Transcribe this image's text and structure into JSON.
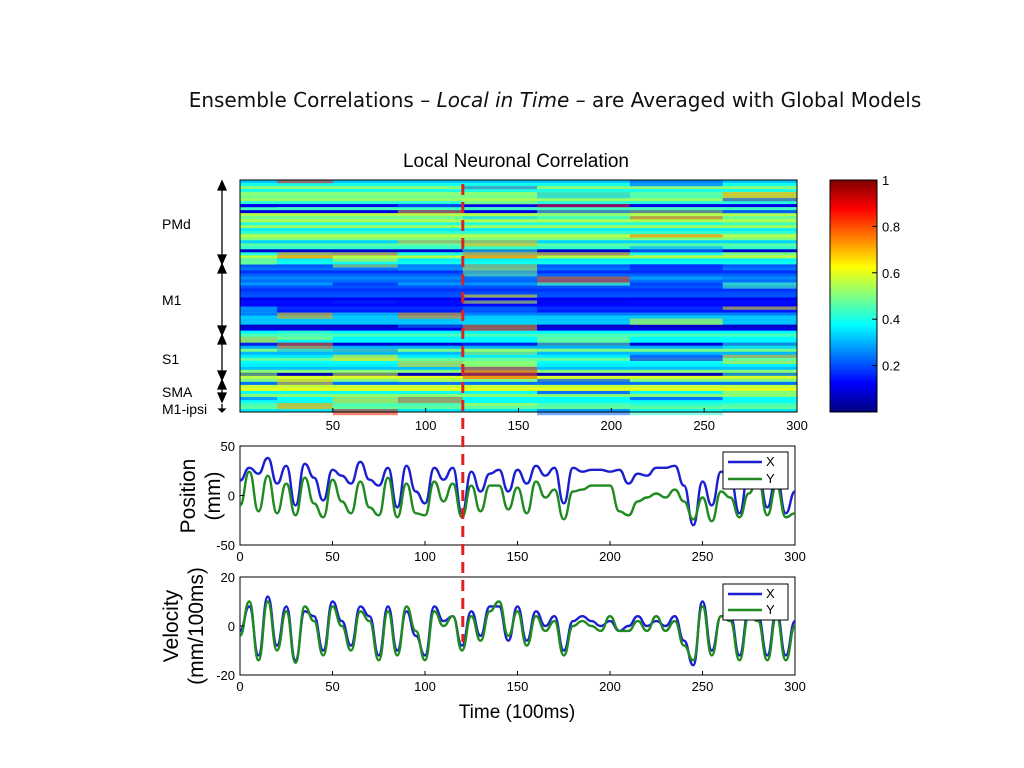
{
  "slide": {
    "title_pre": "Ensemble Correlations – ",
    "title_em": "Local in Time",
    "title_post": " – are Averaged with Global Models"
  },
  "colors": {
    "x_series": "#1a1fd0",
    "y_series": "#1f8a1f",
    "marker": "#e02020"
  },
  "chart_data": [
    {
      "type": "heatmap",
      "title": "Local Neuronal Correlation",
      "xlim": [
        0,
        300
      ],
      "xticks": [
        50,
        100,
        150,
        200,
        250,
        300
      ],
      "region_labels": [
        "PMd",
        "M1",
        "S1",
        "SMA",
        "M1-ipsi"
      ],
      "colorbar": {
        "range": [
          0,
          1
        ],
        "ticks": [
          1,
          0.8,
          0.6,
          0.4,
          0.2
        ],
        "colormap": "jet"
      },
      "marker_x": 120
    },
    {
      "type": "line",
      "ylabel": [
        "Position",
        "(mm)"
      ],
      "xlim": [
        0,
        300
      ],
      "ylim": [
        -50,
        50
      ],
      "xticks": [
        0,
        50,
        100,
        150,
        200,
        250,
        300
      ],
      "yticks": [
        50,
        0,
        -50
      ],
      "legend_position": "top-right",
      "marker_x": 120,
      "x": [
        0,
        5,
        10,
        15,
        20,
        25,
        30,
        35,
        40,
        45,
        50,
        55,
        60,
        65,
        70,
        75,
        80,
        85,
        90,
        95,
        100,
        105,
        110,
        115,
        120,
        125,
        130,
        135,
        140,
        145,
        150,
        155,
        160,
        165,
        170,
        175,
        180,
        185,
        190,
        195,
        200,
        205,
        210,
        215,
        220,
        225,
        230,
        235,
        240,
        245,
        250,
        255,
        260,
        265,
        270,
        275,
        280,
        285,
        290,
        295,
        300
      ],
      "series": [
        {
          "name": "X",
          "values": [
            15,
            28,
            22,
            38,
            12,
            30,
            -10,
            32,
            18,
            -5,
            26,
            20,
            12,
            34,
            16,
            10,
            28,
            -12,
            30,
            4,
            -8,
            28,
            16,
            28,
            -18,
            24,
            4,
            22,
            26,
            4,
            26,
            12,
            30,
            20,
            28,
            -8,
            28,
            24,
            26,
            26,
            24,
            26,
            12,
            22,
            20,
            28,
            28,
            30,
            10,
            -30,
            14,
            -10,
            24,
            18,
            -18,
            24,
            26,
            -12,
            20,
            -18,
            4
          ]
        },
        {
          "name": "Y",
          "values": [
            -10,
            24,
            -16,
            20,
            -18,
            12,
            -20,
            18,
            -8,
            -22,
            16,
            -6,
            -18,
            14,
            -12,
            -20,
            18,
            -22,
            12,
            -18,
            -20,
            14,
            -6,
            12,
            -22,
            10,
            -16,
            10,
            10,
            -14,
            8,
            -18,
            14,
            -2,
            6,
            -24,
            4,
            6,
            10,
            10,
            10,
            -16,
            -20,
            -6,
            -2,
            2,
            -2,
            6,
            -6,
            -24,
            -2,
            -26,
            4,
            -2,
            -22,
            2,
            18,
            -20,
            10,
            -22,
            -18
          ]
        }
      ]
    },
    {
      "type": "line",
      "ylabel": [
        "Velocity",
        "(mm/100ms)"
      ],
      "xlabel": "Time (100ms)",
      "xlim": [
        0,
        300
      ],
      "ylim": [
        -20,
        20
      ],
      "xticks": [
        0,
        50,
        100,
        150,
        200,
        250,
        300
      ],
      "yticks": [
        20,
        0,
        -20
      ],
      "legend_position": "top-right",
      "marker_x": 120,
      "x": [
        0,
        5,
        10,
        15,
        20,
        25,
        30,
        35,
        40,
        45,
        50,
        55,
        60,
        65,
        70,
        75,
        80,
        85,
        90,
        95,
        100,
        105,
        110,
        115,
        120,
        125,
        130,
        135,
        140,
        145,
        150,
        155,
        160,
        165,
        170,
        175,
        180,
        185,
        190,
        195,
        200,
        205,
        210,
        215,
        220,
        225,
        230,
        235,
        240,
        245,
        250,
        255,
        260,
        265,
        270,
        275,
        280,
        285,
        290,
        295,
        300
      ],
      "series": [
        {
          "name": "X",
          "values": [
            -2,
            8,
            -12,
            12,
            -8,
            8,
            -14,
            6,
            4,
            -10,
            10,
            2,
            -8,
            8,
            4,
            -12,
            8,
            -10,
            6,
            -4,
            -12,
            8,
            2,
            4,
            -8,
            6,
            -4,
            8,
            8,
            -6,
            8,
            -6,
            6,
            0,
            4,
            -10,
            2,
            4,
            2,
            0,
            2,
            -2,
            0,
            4,
            0,
            2,
            0,
            4,
            -6,
            -16,
            10,
            -10,
            4,
            4,
            -12,
            6,
            4,
            -12,
            6,
            -12,
            2
          ]
        },
        {
          "name": "Y",
          "values": [
            -4,
            10,
            -14,
            10,
            -10,
            6,
            -15,
            8,
            2,
            -12,
            8,
            0,
            -10,
            6,
            2,
            -14,
            6,
            -12,
            8,
            -2,
            -14,
            6,
            0,
            4,
            -10,
            4,
            -6,
            6,
            10,
            -4,
            6,
            -8,
            4,
            -2,
            2,
            -12,
            0,
            2,
            0,
            -2,
            4,
            -2,
            -2,
            2,
            -2,
            4,
            -2,
            2,
            -8,
            -14,
            8,
            -12,
            4,
            2,
            -14,
            4,
            2,
            -14,
            4,
            -14,
            0
          ]
        }
      ]
    }
  ]
}
